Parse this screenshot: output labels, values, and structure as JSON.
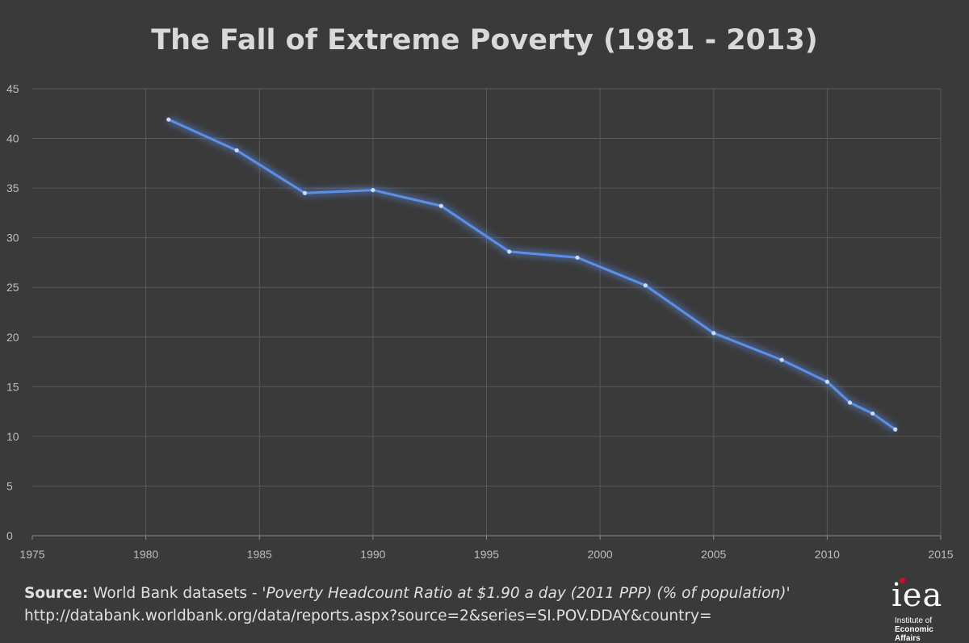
{
  "chart_data": {
    "type": "line",
    "title": "The Fall of Extreme Poverty (1981 - 2013)",
    "xlabel": "",
    "ylabel": "",
    "xlim": [
      1975,
      2015
    ],
    "ylim": [
      0,
      45
    ],
    "x_ticks": [
      1975,
      1980,
      1985,
      1990,
      1995,
      2000,
      2005,
      2010,
      2015
    ],
    "y_ticks": [
      0,
      5,
      10,
      15,
      20,
      25,
      30,
      35,
      40,
      45
    ],
    "grid": true,
    "series": [
      {
        "name": "Poverty Headcount Ratio at $1.90 a day (2011 PPP) (% of population)",
        "color": "#5b8fe8",
        "x": [
          1981,
          1984,
          1987,
          1990,
          1993,
          1996,
          1999,
          2002,
          2005,
          2008,
          2010,
          2011,
          2012,
          2013
        ],
        "values": [
          41.9,
          38.8,
          34.5,
          34.8,
          33.2,
          28.6,
          28.0,
          25.2,
          20.4,
          17.7,
          15.5,
          13.4,
          12.3,
          10.7
        ]
      }
    ]
  },
  "source": {
    "label": "Source:",
    "text": " World Bank datasets - ",
    "dataset": "'Poverty Headcount Ratio at $1.90 a day (2011 PPP) (% of population)'",
    "url": "http://databank.worldbank.org/data/reports.aspx?source=2&series=SI.POV.DDAY&country="
  },
  "logo": {
    "word": "iea",
    "line1": "Institute of",
    "line2": "Economic Affairs"
  },
  "colors": {
    "background": "#3a3a3a",
    "grid": "#595959",
    "text": "#d9d9d9",
    "line": "#5b8fe8",
    "accent": "#c8102e"
  }
}
